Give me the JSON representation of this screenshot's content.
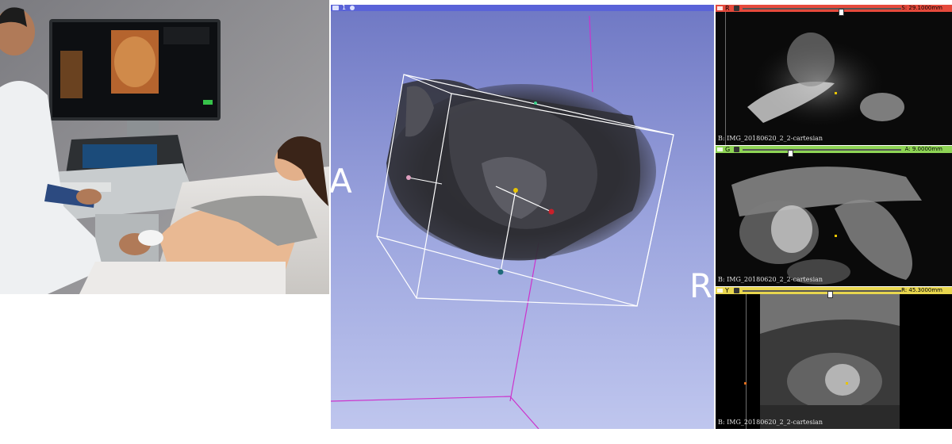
{
  "view3d": {
    "view_number": "1",
    "orientation_left": "A",
    "orientation_right": "R"
  },
  "slices": [
    {
      "letter": "R",
      "bar_color": "#e64a3c",
      "offset": "S: 29.1000mm",
      "volume_label": "B: IMG_20180620_2_2-cartesian",
      "slider_fraction": 0.62
    },
    {
      "letter": "G",
      "bar_color": "#8ed455",
      "offset": "A: 9.0000mm",
      "volume_label": "B: IMG_20180620_2_2-cartesian",
      "slider_fraction": 0.3
    },
    {
      "letter": "Y",
      "bar_color": "#e8d64e",
      "offset": "R: 45.3000mm",
      "volume_label": "B: IMG_20180620_2_2-cartesian",
      "slider_fraction": 0.55
    }
  ]
}
